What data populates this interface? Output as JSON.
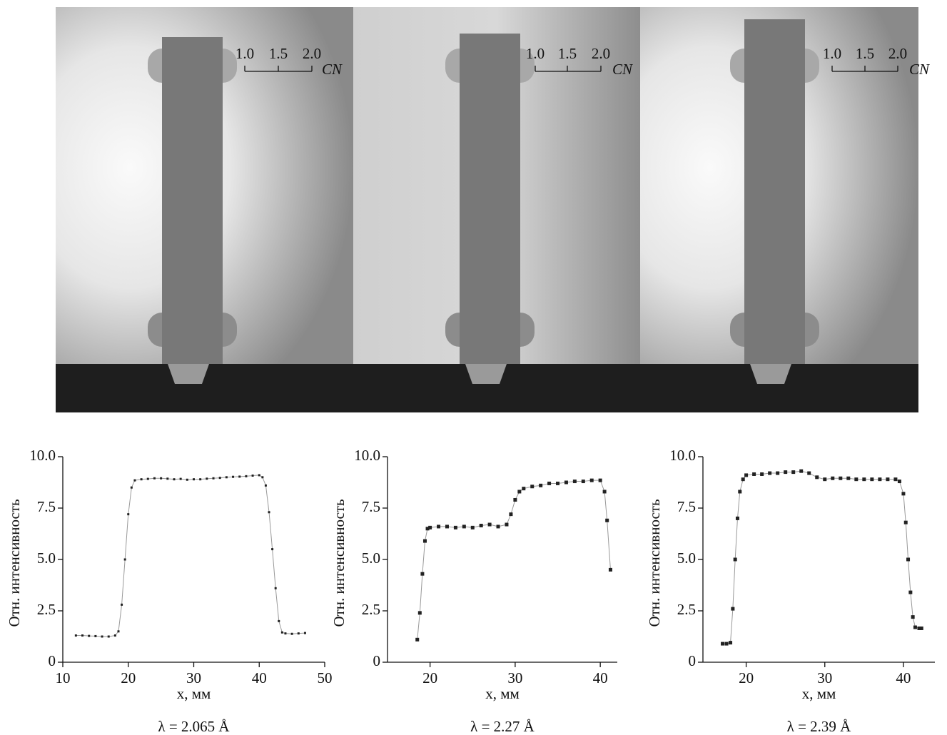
{
  "images": [
    {
      "scale_ticks": [
        "1.0",
        "1.5",
        "2.0"
      ],
      "scale_label": "CN"
    },
    {
      "scale_ticks": [
        "1.0",
        "1.5",
        "2.0"
      ],
      "scale_label": "CN"
    },
    {
      "scale_ticks": [
        "1.0",
        "1.5",
        "2.0"
      ],
      "scale_label": "CN"
    }
  ],
  "chart_data": [
    {
      "type": "line",
      "xlabel": "x, мм",
      "ylabel": "Отн. интенсивность",
      "caption": "λ = 2.065 Å",
      "xlim": [
        10,
        50
      ],
      "xticks": [
        10,
        20,
        30,
        40,
        50
      ],
      "ylim": [
        0,
        10
      ],
      "yticks": [
        0,
        2.5,
        {
          "value": 5,
          "label": "5.0"
        },
        7.5,
        {
          "value": 10,
          "label": "10.0"
        }
      ],
      "series": [
        {
          "color": "#222222",
          "x": [
            12,
            13,
            14,
            15,
            16,
            17,
            18,
            18.5,
            19,
            19.5,
            20,
            20.5,
            21,
            22,
            23,
            24,
            25,
            26,
            27,
            28,
            29,
            30,
            31,
            32,
            33,
            34,
            35,
            36,
            37,
            38,
            39,
            40,
            40.5,
            41,
            41.5,
            42,
            42.5,
            43,
            43.5,
            44,
            45,
            46,
            47
          ],
          "values": [
            1.3,
            1.3,
            1.28,
            1.27,
            1.25,
            1.25,
            1.3,
            1.5,
            2.8,
            5.0,
            7.2,
            8.5,
            8.85,
            8.9,
            8.92,
            8.95,
            8.95,
            8.93,
            8.9,
            8.92,
            8.88,
            8.9,
            8.9,
            8.93,
            8.95,
            8.97,
            9.0,
            9.02,
            9.03,
            9.05,
            9.08,
            9.1,
            9.0,
            8.6,
            7.3,
            5.5,
            3.6,
            2.0,
            1.45,
            1.4,
            1.38,
            1.4,
            1.42
          ]
        }
      ]
    },
    {
      "type": "line",
      "xlabel": "x, мм",
      "ylabel": "Отн. интенсивность",
      "caption": "λ = 2.27 Å",
      "xlim": [
        15,
        42
      ],
      "xticks": [
        20,
        30,
        40
      ],
      "ylim": [
        0,
        10
      ],
      "yticks": [
        0,
        2.5,
        {
          "value": 5,
          "label": "5.0"
        },
        7.5,
        {
          "value": 10,
          "label": "10.0"
        }
      ],
      "series": [
        {
          "color": "#222222",
          "x": [
            18.5,
            18.8,
            19.1,
            19.4,
            19.7,
            20,
            21,
            22,
            23,
            24,
            25,
            26,
            27,
            28,
            29,
            29.5,
            30,
            30.5,
            31,
            32,
            33,
            34,
            35,
            36,
            37,
            38,
            39,
            40,
            40.5,
            40.8,
            41.2
          ],
          "values": [
            1.1,
            2.4,
            4.3,
            5.9,
            6.5,
            6.55,
            6.6,
            6.6,
            6.55,
            6.6,
            6.55,
            6.65,
            6.7,
            6.6,
            6.7,
            7.2,
            7.9,
            8.3,
            8.45,
            8.55,
            8.6,
            8.7,
            8.7,
            8.75,
            8.8,
            8.8,
            8.85,
            8.85,
            8.3,
            6.9,
            4.5
          ]
        }
      ]
    },
    {
      "type": "line",
      "xlabel": "x, мм",
      "ylabel": "Отн. интенсивность",
      "caption": "λ = 2.39 Å",
      "xlim": [
        14.5,
        44
      ],
      "xticks": [
        20,
        30,
        40
      ],
      "ylim": [
        0,
        10
      ],
      "yticks": [
        0,
        2.5,
        {
          "value": 5,
          "label": "5.0"
        },
        7.5,
        {
          "value": 10,
          "label": "10.0"
        }
      ],
      "series": [
        {
          "color": "#222222",
          "x": [
            17,
            17.5,
            18,
            18.3,
            18.6,
            18.9,
            19.2,
            19.6,
            20,
            21,
            22,
            23,
            24,
            25,
            26,
            27,
            28,
            29,
            30,
            31,
            32,
            33,
            34,
            35,
            36,
            37,
            38,
            39,
            39.5,
            40,
            40.3,
            40.6,
            40.9,
            41.2,
            41.5,
            42,
            42.3
          ],
          "values": [
            0.9,
            0.9,
            0.95,
            2.6,
            5.0,
            7.0,
            8.3,
            8.9,
            9.1,
            9.15,
            9.15,
            9.2,
            9.2,
            9.25,
            9.25,
            9.3,
            9.2,
            9.0,
            8.9,
            8.95,
            8.95,
            8.95,
            8.9,
            8.9,
            8.9,
            8.9,
            8.9,
            8.9,
            8.8,
            8.2,
            6.8,
            5.0,
            3.4,
            2.2,
            1.7,
            1.65,
            1.65
          ]
        }
      ]
    }
  ]
}
